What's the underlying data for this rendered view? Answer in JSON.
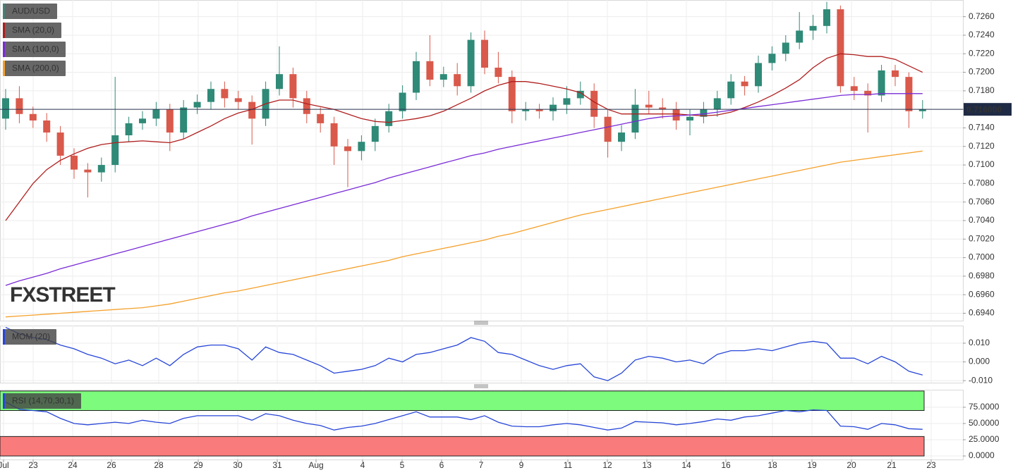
{
  "chart_data": [
    {
      "type": "candlestick",
      "ylim": [
        0.6932,
        0.7278
      ],
      "yticks": [
        {
          "value": 0.694,
          "label": "0.6940"
        },
        {
          "value": 0.696,
          "label": "0.6960"
        },
        {
          "value": 0.698,
          "label": "0.6980"
        },
        {
          "value": 0.7,
          "label": "0.7000"
        },
        {
          "value": 0.702,
          "label": "0.7020"
        },
        {
          "value": 0.704,
          "label": "0.7040"
        },
        {
          "value": 0.706,
          "label": "0.7060"
        },
        {
          "value": 0.708,
          "label": "0.7080"
        },
        {
          "value": 0.71,
          "label": "0.7100"
        },
        {
          "value": 0.712,
          "label": "0.7120"
        },
        {
          "value": 0.714,
          "label": "0.7140"
        },
        {
          "value": 0.716,
          "label": "0.7160"
        },
        {
          "value": 0.718,
          "label": "0.7180"
        },
        {
          "value": 0.72,
          "label": "0.7200"
        },
        {
          "value": 0.722,
          "label": "0.7220"
        },
        {
          "value": 0.724,
          "label": "0.7240"
        },
        {
          "value": 0.726,
          "label": "0.7260"
        }
      ],
      "grid": true,
      "watermark": "FXSTREET",
      "last_price": {
        "value": 0.716,
        "label": "0.716000"
      },
      "series": [
        {
          "name": "AUD/USD",
          "color": "#4a7f74",
          "up_color": "#2f8a77",
          "down_color": "#d9594b",
          "ohlc": [
            [
              0.715,
              0.7182,
              0.7138,
              0.7172
            ],
            [
              0.7172,
              0.7185,
              0.7145,
              0.7155
            ],
            [
              0.7155,
              0.7163,
              0.714,
              0.7148
            ],
            [
              0.7148,
              0.7156,
              0.7125,
              0.7135
            ],
            [
              0.7135,
              0.7142,
              0.71,
              0.711
            ],
            [
              0.711,
              0.7118,
              0.7085,
              0.7095
            ],
            [
              0.7095,
              0.7102,
              0.7065,
              0.7092
            ],
            [
              0.7092,
              0.7108,
              0.7082,
              0.71
            ],
            [
              0.71,
              0.7195,
              0.7092,
              0.7132
            ],
            [
              0.7132,
              0.7152,
              0.7125,
              0.7145
            ],
            [
              0.7145,
              0.7158,
              0.7138,
              0.715
            ],
            [
              0.715,
              0.7168,
              0.7142,
              0.716
            ],
            [
              0.716,
              0.7166,
              0.7115,
              0.7135
            ],
            [
              0.7135,
              0.717,
              0.7128,
              0.7162
            ],
            [
              0.7162,
              0.7176,
              0.7155,
              0.7168
            ],
            [
              0.7168,
              0.719,
              0.716,
              0.7182
            ],
            [
              0.7182,
              0.719,
              0.7162,
              0.7172
            ],
            [
              0.7172,
              0.718,
              0.716,
              0.7168
            ],
            [
              0.7168,
              0.7175,
              0.7122,
              0.715
            ],
            [
              0.715,
              0.719,
              0.7142,
              0.7182
            ],
            [
              0.7182,
              0.7228,
              0.7175,
              0.7198
            ],
            [
              0.7198,
              0.7205,
              0.7162,
              0.7172
            ],
            [
              0.7172,
              0.718,
              0.7145,
              0.7155
            ],
            [
              0.7155,
              0.7162,
              0.7135,
              0.7145
            ],
            [
              0.7145,
              0.7152,
              0.71,
              0.712
            ],
            [
              0.712,
              0.7128,
              0.7076,
              0.7115
            ],
            [
              0.7115,
              0.7132,
              0.7105,
              0.7125
            ],
            [
              0.7125,
              0.715,
              0.7115,
              0.7142
            ],
            [
              0.7142,
              0.7166,
              0.7135,
              0.7158
            ],
            [
              0.7158,
              0.7186,
              0.715,
              0.7178
            ],
            [
              0.7178,
              0.7222,
              0.717,
              0.7212
            ],
            [
              0.7212,
              0.724,
              0.7185,
              0.7192
            ],
            [
              0.7192,
              0.7206,
              0.7184,
              0.7198
            ],
            [
              0.7198,
              0.721,
              0.7175,
              0.7185
            ],
            [
              0.7185,
              0.7243,
              0.7178,
              0.7235
            ],
            [
              0.7235,
              0.7245,
              0.7198,
              0.7205
            ],
            [
              0.7205,
              0.7222,
              0.7188,
              0.7195
            ],
            [
              0.7195,
              0.7202,
              0.7145,
              0.7158
            ],
            [
              0.7158,
              0.7168,
              0.7148,
              0.716
            ],
            [
              0.716,
              0.7166,
              0.715,
              0.7158
            ],
            [
              0.7158,
              0.7173,
              0.7148,
              0.7165
            ],
            [
              0.7165,
              0.7185,
              0.7155,
              0.7172
            ],
            [
              0.7172,
              0.719,
              0.7165,
              0.718
            ],
            [
              0.718,
              0.7188,
              0.714,
              0.7152
            ],
            [
              0.7152,
              0.716,
              0.7108,
              0.7125
            ],
            [
              0.7125,
              0.7143,
              0.7115,
              0.7135
            ],
            [
              0.7135,
              0.7182,
              0.7128,
              0.7165
            ],
            [
              0.7165,
              0.718,
              0.7155,
              0.7162
            ],
            [
              0.7162,
              0.7172,
              0.715,
              0.716
            ],
            [
              0.716,
              0.7168,
              0.7138,
              0.7148
            ],
            [
              0.7148,
              0.716,
              0.7132,
              0.7152
            ],
            [
              0.7152,
              0.7168,
              0.7145,
              0.716
            ],
            [
              0.716,
              0.718,
              0.7152,
              0.7172
            ],
            [
              0.7172,
              0.7198,
              0.7165,
              0.719
            ],
            [
              0.719,
              0.7196,
              0.7175,
              0.7185
            ],
            [
              0.7185,
              0.7218,
              0.7178,
              0.721
            ],
            [
              0.721,
              0.7228,
              0.7202,
              0.722
            ],
            [
              0.722,
              0.724,
              0.7212,
              0.7232
            ],
            [
              0.7232,
              0.7265,
              0.7225,
              0.7245
            ],
            [
              0.7245,
              0.7262,
              0.7235,
              0.725
            ],
            [
              0.725,
              0.7276,
              0.7242,
              0.7268
            ],
            [
              0.7268,
              0.7272,
              0.7178,
              0.7185
            ],
            [
              0.7185,
              0.7195,
              0.717,
              0.718
            ],
            [
              0.718,
              0.7188,
              0.7135,
              0.7175
            ],
            [
              0.7175,
              0.7208,
              0.7168,
              0.7202
            ],
            [
              0.7202,
              0.7208,
              0.7185,
              0.7195
            ],
            [
              0.7195,
              0.72,
              0.714,
              0.7158
            ],
            [
              0.7158,
              0.717,
              0.715,
              0.716
            ]
          ]
        },
        {
          "name": "SMA (20,0)",
          "color": "#b01e1e",
          "values": [
            0.704,
            0.706,
            0.708,
            0.7095,
            0.7105,
            0.7112,
            0.7118,
            0.7122,
            0.7124,
            0.7125,
            0.7126,
            0.7125,
            0.7124,
            0.7128,
            0.7135,
            0.7142,
            0.715,
            0.7156,
            0.716,
            0.7166,
            0.717,
            0.717,
            0.7166,
            0.7163,
            0.716,
            0.7155,
            0.715,
            0.7147,
            0.7146,
            0.7148,
            0.715,
            0.7153,
            0.7158,
            0.7165,
            0.7172,
            0.718,
            0.7186,
            0.719,
            0.719,
            0.7188,
            0.7185,
            0.7182,
            0.7178,
            0.7168,
            0.716,
            0.7155,
            0.7155,
            0.7155,
            0.7155,
            0.7155,
            0.7154,
            0.7153,
            0.7154,
            0.7157,
            0.7162,
            0.7168,
            0.7175,
            0.7183,
            0.7192,
            0.7205,
            0.7215,
            0.722,
            0.7219,
            0.7217,
            0.7217,
            0.7214,
            0.7207,
            0.72
          ]
        },
        {
          "name": "SMA (100,0)",
          "color": "#7a2bd6",
          "values": [
            0.697,
            0.6975,
            0.6979,
            0.6983,
            0.6988,
            0.6992,
            0.6996,
            0.7,
            0.7004,
            0.7008,
            0.7012,
            0.7016,
            0.702,
            0.7024,
            0.7028,
            0.7032,
            0.7036,
            0.704,
            0.7045,
            0.7049,
            0.7053,
            0.7057,
            0.7061,
            0.7065,
            0.7069,
            0.7073,
            0.7077,
            0.7081,
            0.7086,
            0.709,
            0.7094,
            0.7098,
            0.7102,
            0.7106,
            0.711,
            0.7113,
            0.7117,
            0.712,
            0.7123,
            0.7126,
            0.7129,
            0.7132,
            0.7135,
            0.7138,
            0.7141,
            0.7144,
            0.7147,
            0.715,
            0.7152,
            0.7153,
            0.7154,
            0.7155,
            0.7157,
            0.7159,
            0.7161,
            0.7163,
            0.7165,
            0.7167,
            0.7169,
            0.7171,
            0.7173,
            0.7175,
            0.7176,
            0.7176,
            0.7177,
            0.7177,
            0.7177,
            0.7177
          ]
        },
        {
          "name": "SMA (200,0)",
          "color": "#f5a02a",
          "values": [
            0.6936,
            0.6937,
            0.6938,
            0.6939,
            0.694,
            0.6941,
            0.6942,
            0.6943,
            0.6944,
            0.6945,
            0.6946,
            0.6948,
            0.695,
            0.6953,
            0.6956,
            0.6959,
            0.6962,
            0.6964,
            0.6967,
            0.697,
            0.6973,
            0.6976,
            0.6979,
            0.6982,
            0.6985,
            0.6988,
            0.6991,
            0.6994,
            0.6997,
            0.7001,
            0.7004,
            0.7007,
            0.701,
            0.7013,
            0.7016,
            0.7019,
            0.7023,
            0.7026,
            0.703,
            0.7034,
            0.7038,
            0.7042,
            0.7046,
            0.7049,
            0.7052,
            0.7055,
            0.7058,
            0.7061,
            0.7064,
            0.7067,
            0.707,
            0.7073,
            0.7076,
            0.7079,
            0.7082,
            0.7085,
            0.7088,
            0.7091,
            0.7094,
            0.7097,
            0.71,
            0.7103,
            0.7105,
            0.7107,
            0.7109,
            0.7111,
            0.7113,
            0.7115
          ]
        }
      ]
    },
    {
      "type": "line",
      "ylim": [
        -0.0111,
        0.0194
      ],
      "yticks": [
        {
          "value": 0.01,
          "label": "0.010"
        },
        {
          "value": 0,
          "label": "0.000"
        },
        {
          "value": -0.01,
          "label": "-0.010"
        }
      ],
      "grid": true,
      "series": [
        {
          "name": "MOM (20)",
          "color": "#2746d8",
          "values": [
            0.0185,
            0.015,
            0.013,
            0.012,
            0.009,
            0.007,
            0.004,
            0.002,
            -0.001,
            0.001,
            -0.002,
            0.002,
            -0.002,
            0.004,
            0.008,
            0.009,
            0.009,
            0.007,
            0.001,
            0.008,
            0.005,
            0.004,
            0.001,
            -0.002,
            -0.006,
            -0.005,
            -0.004,
            -0.002,
            0.002,
            0.0,
            0.004,
            0.005,
            0.007,
            0.009,
            0.013,
            0.011,
            0.005,
            0.004,
            0.001,
            -0.002,
            -0.004,
            -0.002,
            -0.001,
            -0.008,
            -0.01,
            -0.006,
            0.001,
            0.003,
            0.002,
            0.0,
            0.001,
            -0.001,
            0.004,
            0.006,
            0.006,
            0.007,
            0.006,
            0.008,
            0.01,
            0.011,
            0.01,
            0.002,
            0.002,
            -0.001,
            0.003,
            0.0,
            -0.005,
            -0.007
          ]
        }
      ]
    },
    {
      "type": "line",
      "ylim": [
        -5.4,
        102
      ],
      "yticks": [
        {
          "value": 75,
          "label": "75.0000"
        },
        {
          "value": 50,
          "label": "50.0000"
        },
        {
          "value": 25,
          "label": "25.0000"
        },
        {
          "value": 0,
          "label": "0.0000"
        }
      ],
      "grid": true,
      "bands": [
        {
          "from": 70,
          "to": 100,
          "color": "#7cfb7c"
        },
        {
          "from": 0,
          "to": 30,
          "color": "#fa7b7b"
        }
      ],
      "x_labels": [
        "Jul",
        "23",
        "24",
        "26",
        "28",
        "29",
        "30",
        "31",
        "Aug",
        "4",
        "5",
        "6",
        "7",
        "9",
        "11",
        "12",
        "13",
        "14",
        "16",
        "18",
        "19",
        "20",
        "21",
        "23"
      ],
      "series": [
        {
          "name": "RSI (14,70,30,1)",
          "color": "#2746d8",
          "values": [
            83,
            72,
            70,
            68,
            58,
            50,
            48,
            50,
            52,
            50,
            55,
            52,
            50,
            58,
            62,
            62,
            62,
            62,
            55,
            65,
            62,
            55,
            50,
            47,
            40,
            44,
            46,
            50,
            56,
            62,
            68,
            60,
            60,
            60,
            56,
            62,
            52,
            46,
            45,
            45,
            48,
            50,
            48,
            44,
            40,
            43,
            53,
            52,
            51,
            48,
            50,
            53,
            57,
            55,
            60,
            62,
            66,
            70,
            68,
            71,
            70,
            46,
            45,
            41,
            50,
            48,
            42,
            41
          ]
        }
      ]
    }
  ]
}
